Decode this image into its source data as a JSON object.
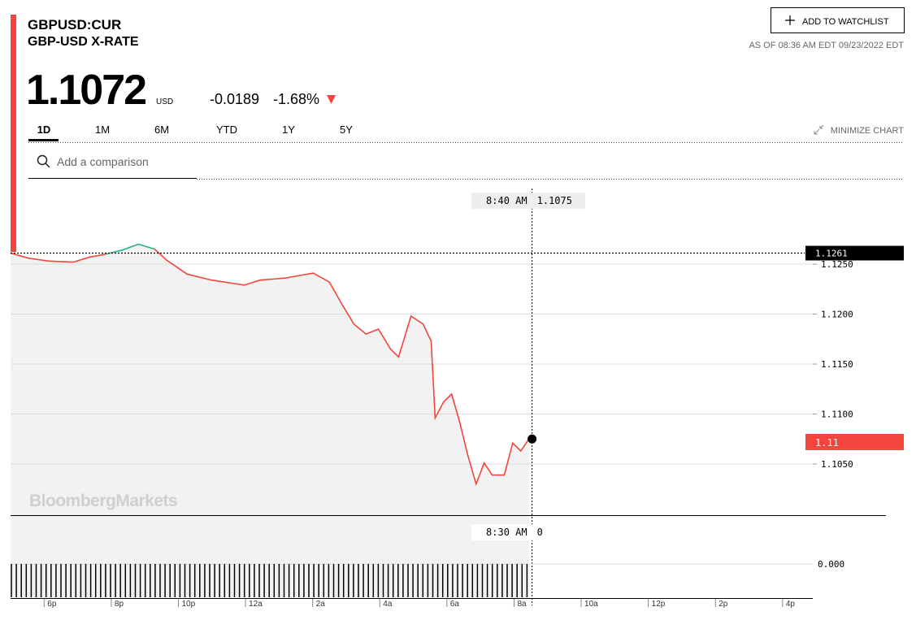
{
  "header": {
    "ticker": "GBPUSD:CUR",
    "name": "GBP-USD X-RATE",
    "price": "1.1072",
    "currency": "USD",
    "change": "-0.0189",
    "change_percent": "-1.68%",
    "watchlist_button": "ADD TO WATCHLIST",
    "as_of": "AS OF 08:36 AM EDT 09/23/2022 EDT"
  },
  "tabs": [
    "1D",
    "1M",
    "6M",
    "YTD",
    "1Y",
    "5Y"
  ],
  "minimize": "MINIMIZE CHART",
  "comparison_placeholder": "Add a comparison",
  "watermark": "BloombergMarkets",
  "chart_data": {
    "type": "line",
    "x": [
      17.0,
      17.53,
      18.14,
      18.87,
      19.35,
      19.84,
      20.32,
      20.81,
      21.29,
      21.65,
      22.26,
      22.99,
      23.96,
      24.44,
      25.17,
      26.02,
      26.5,
      26.87,
      27.23,
      27.59,
      27.96,
      28.32,
      28.56,
      28.93,
      29.29,
      29.53,
      29.65,
      29.9,
      30.14,
      30.38,
      30.62,
      30.87,
      31.11,
      31.35,
      31.71,
      31.96,
      32.2,
      32.44
    ],
    "series": [
      {
        "color": "#f2453d",
        "up_color": "#22b47b",
        "values": [
          1.1261,
          1.1256,
          1.1253,
          1.1252,
          1.1257,
          1.126,
          1.1264,
          1.127,
          1.1265,
          1.1254,
          1.124,
          1.1234,
          1.1229,
          1.1234,
          1.1236,
          1.1241,
          1.1232,
          1.121,
          1.119,
          1.118,
          1.1185,
          1.1165,
          1.1157,
          1.1198,
          1.119,
          1.1173,
          1.1096,
          1.1112,
          1.112,
          1.1092,
          1.1059,
          1.103,
          1.1051,
          1.1039,
          1.1039,
          1.1071,
          1.1063,
          1.1075
        ]
      }
    ],
    "previous_close": {
      "value": 1.1261,
      "label": "1.1261"
    },
    "last_price": {
      "value": 1.1072,
      "label": "1.11"
    },
    "crosshair_top": {
      "time": "8:40 AM",
      "value": "1.1075"
    },
    "crosshair_bottom": {
      "time": "8:30 AM",
      "value": "0"
    },
    "volume_tick": {
      "value": 0,
      "label": "0.000"
    },
    "xlim": [
      17,
      40.9
    ],
    "xticks": [
      {
        "value": 18,
        "label": "6p"
      },
      {
        "value": 20,
        "label": "8p"
      },
      {
        "value": 22,
        "label": "10p"
      },
      {
        "value": 24,
        "label": "12a"
      },
      {
        "value": 26,
        "label": "2a"
      },
      {
        "value": 28,
        "label": "4a"
      },
      {
        "value": 30,
        "label": "6a"
      },
      {
        "value": 32,
        "label": "8a"
      },
      {
        "value": 34,
        "label": "10a"
      },
      {
        "value": 36,
        "label": "12p"
      },
      {
        "value": 38,
        "label": "2p"
      },
      {
        "value": 40,
        "label": "4p"
      }
    ],
    "ylim": [
      1.1,
      1.1335
    ],
    "yticks": [
      {
        "value": 1.105,
        "label": "1.1050"
      },
      {
        "value": 1.11,
        "label": "1.1100"
      },
      {
        "value": 1.115,
        "label": "1.1150"
      },
      {
        "value": 1.12,
        "label": "1.1200"
      },
      {
        "value": 1.125,
        "label": "1.1250"
      }
    ],
    "grid": true
  }
}
